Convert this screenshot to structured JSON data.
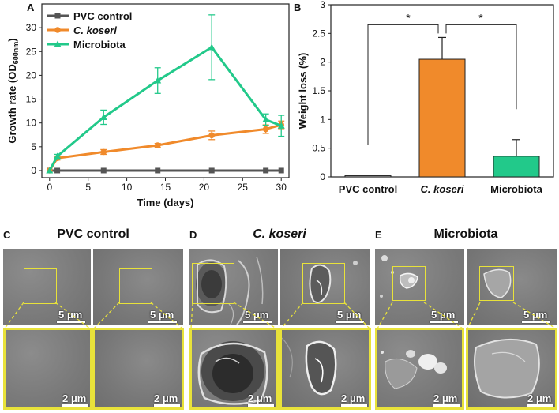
{
  "panel_letters": {
    "a": "A",
    "b": "B",
    "c": "C",
    "d": "D",
    "e": "E"
  },
  "chart_data": [
    {
      "type": "line",
      "title": "",
      "xlabel": "Time (days)",
      "ylabel_main": "Growth rate (OD",
      "ylabel_sub": "600nm",
      "ylabel_close": ")",
      "xlim": [
        -1,
        31
      ],
      "ylim": [
        -1.5,
        35
      ],
      "xticks": [
        0,
        5,
        10,
        15,
        20,
        25,
        30
      ],
      "yticks": [
        0,
        5,
        10,
        15,
        20,
        25,
        30
      ],
      "legend_position": "top-left",
      "series": [
        {
          "name": "PVC control",
          "color": "#555555",
          "marker": "square",
          "x": [
            0,
            1,
            7,
            14,
            21,
            28,
            30
          ],
          "y": [
            0,
            0,
            0,
            0,
            0,
            0,
            0
          ],
          "err": [
            0,
            0,
            0,
            0,
            0,
            0,
            0
          ]
        },
        {
          "name": "C. koseri",
          "italic": true,
          "color": "#f08a2b",
          "marker": "circle",
          "x": [
            0,
            1,
            7,
            14,
            21,
            28,
            30
          ],
          "y": [
            0,
            2.6,
            3.9,
            5.3,
            7.4,
            8.7,
            9.6
          ],
          "err": [
            0,
            0.4,
            0.5,
            0.4,
            0.9,
            0.9,
            0.8
          ]
        },
        {
          "name": "Microbiota",
          "color": "#22c98a",
          "marker": "triangle",
          "x": [
            0,
            1,
            7,
            14,
            21,
            28,
            30
          ],
          "y": [
            0,
            3.0,
            11.2,
            18.9,
            25.9,
            10.7,
            9.4
          ],
          "err": [
            0,
            0.4,
            1.5,
            2.7,
            6.8,
            1.2,
            2.2
          ]
        }
      ]
    },
    {
      "type": "bar",
      "title": "",
      "ylabel": "Weight loss (%)",
      "ylim": [
        0,
        3
      ],
      "yticks": [
        "0",
        "0.5",
        "1",
        "1.5",
        "2",
        "2.5",
        "3"
      ],
      "categories": [
        "PVC control",
        "C. koseri",
        "Microbiota"
      ],
      "category_italic": [
        false,
        true,
        false
      ],
      "values": [
        0.02,
        2.05,
        0.36
      ],
      "errors": [
        0.0,
        0.38,
        0.29
      ],
      "colors": [
        "#cfcfcf",
        "#f08a2b",
        "#22c98a"
      ],
      "significance": [
        {
          "from": 0,
          "to": 1,
          "label": "*"
        },
        {
          "from": 1,
          "to": 2,
          "label": "*"
        }
      ]
    }
  ],
  "micrographs": {
    "c_title": "PVC control",
    "d_title": "C. koseri",
    "e_title": "Microbiota",
    "scale_top": "5 μm",
    "scale_bottom": "2 μm"
  }
}
